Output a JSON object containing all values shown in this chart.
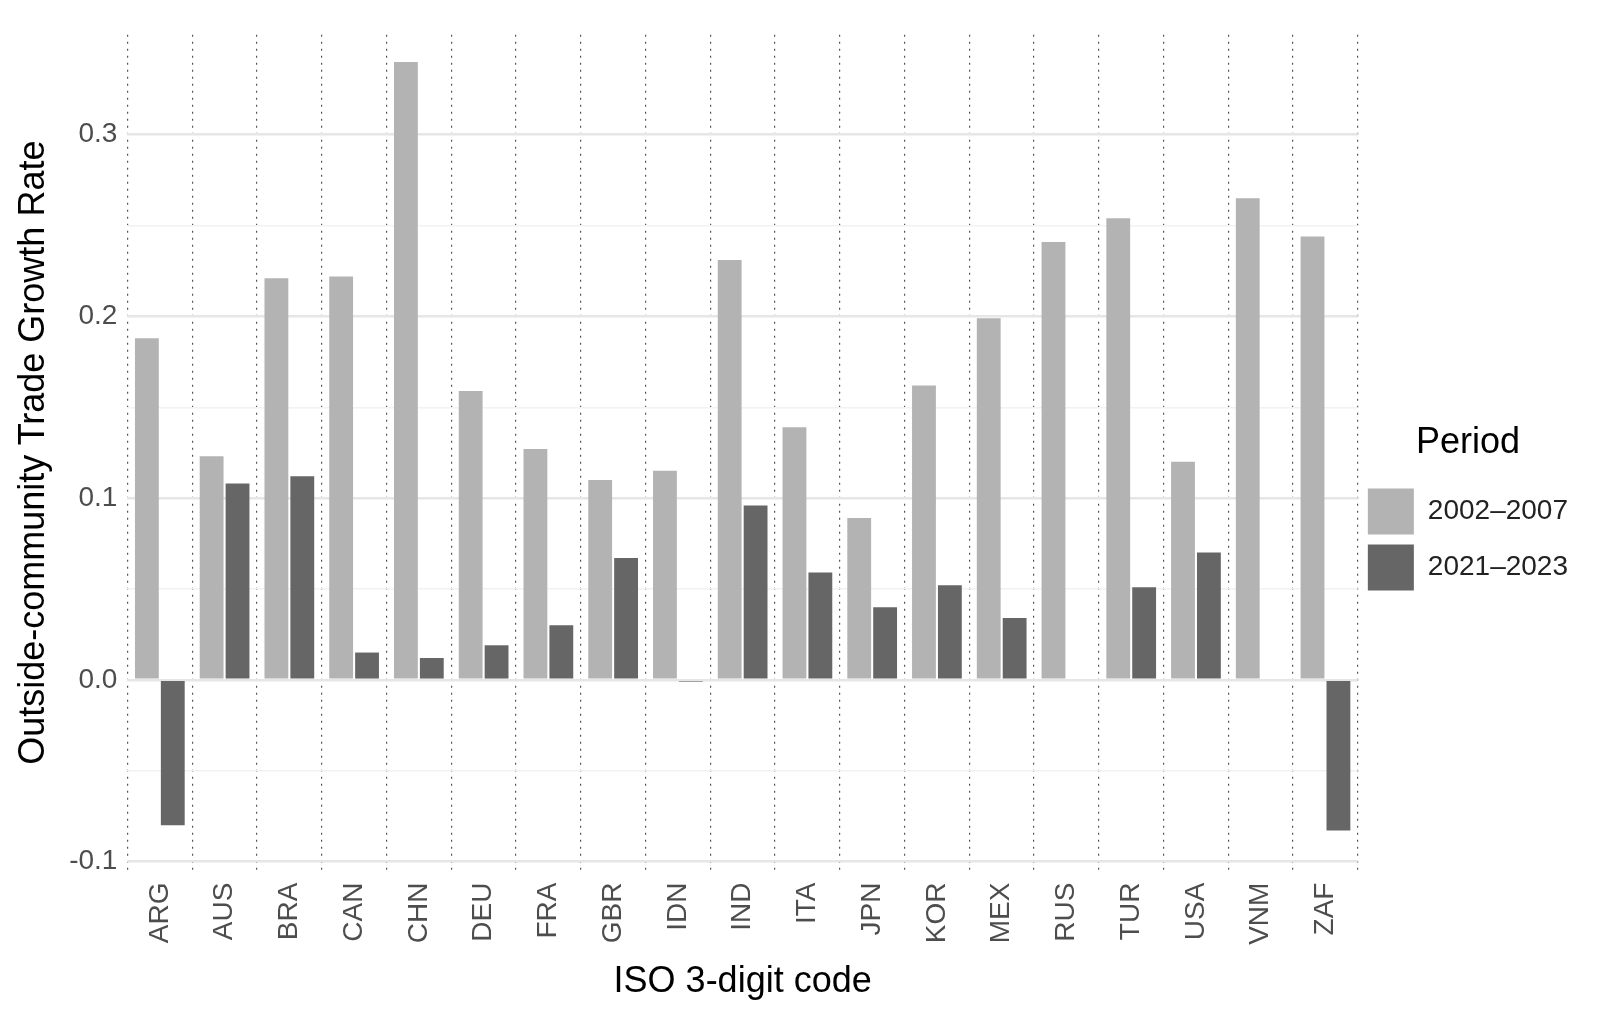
{
  "chart_data": {
    "type": "bar",
    "xlabel": "ISO 3-digit code",
    "ylabel": "Outside-community Trade Growth Rate",
    "legend_title": "Period",
    "legend": "right",
    "categories": [
      "ARG",
      "AUS",
      "BRA",
      "CAN",
      "CHN",
      "DEU",
      "FRA",
      "GBR",
      "IDN",
      "IND",
      "ITA",
      "JPN",
      "KOR",
      "MEX",
      "RUS",
      "TUR",
      "USA",
      "VNM",
      "ZAF"
    ],
    "series": [
      {
        "name": "2002–2007",
        "color": "#b3b3b3",
        "values": [
          0.188,
          0.123,
          0.221,
          0.222,
          0.34,
          0.159,
          0.127,
          0.11,
          0.115,
          0.231,
          0.139,
          0.089,
          0.162,
          0.199,
          0.241,
          0.254,
          0.12,
          0.265,
          0.244
        ]
      },
      {
        "name": "2021–2023",
        "color": "#666666",
        "values": [
          -0.08,
          0.108,
          0.112,
          0.015,
          0.012,
          0.019,
          0.03,
          0.067,
          -0.001,
          0.096,
          0.059,
          0.04,
          0.052,
          0.034,
          null,
          0.051,
          0.07,
          null,
          -0.083
        ]
      }
    ],
    "ylim": [
      -0.105,
      0.355
    ],
    "yticks": [
      -0.1,
      {
        "value": -0.05,
        "label": null
      },
      {
        "value": 0,
        "label": "0.0"
      },
      {
        "value": 0.05,
        "label": null
      },
      0.1,
      {
        "value": 0.15,
        "label": null
      },
      0.2,
      {
        "value": 0.25,
        "label": null
      },
      0.3
    ],
    "grid": true
  }
}
